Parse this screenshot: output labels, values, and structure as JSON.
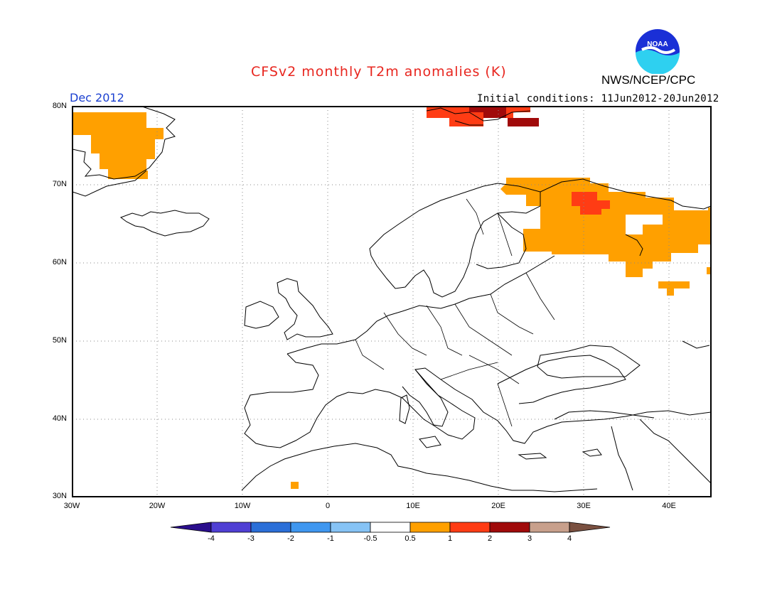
{
  "title": "CFSv2 monthly T2m anomalies (K)",
  "agency": "NWS/NCEP/CPC",
  "logo_text": "NOAA",
  "month": "Dec 2012",
  "initial_conditions": "Initial conditions: 11Jun2012-20Jun2012",
  "lat_labels": [
    "80N",
    "70N",
    "60N",
    "50N",
    "40N",
    "30N"
  ],
  "lon_labels": [
    "30W",
    "20W",
    "10W",
    "0",
    "10E",
    "20E",
    "30E",
    "40E"
  ],
  "colorbar": {
    "levels": [
      "-4",
      "-3",
      "-2",
      "-1",
      "-0.5",
      "0.5",
      "1",
      "2",
      "3",
      "4"
    ],
    "colors": [
      "#2a0e8c",
      "#4f3fd4",
      "#2b6fd8",
      "#3f97f0",
      "#86c3f5",
      "#ffffff",
      "#ffa000",
      "#ff3c14",
      "#a00a0a",
      "#c8a08c",
      "#7a5040"
    ]
  },
  "anomaly_colors": {
    "0.5-1": "#ffa000",
    "1-2": "#ff3c14",
    "2-3": "#a00a0a"
  }
}
